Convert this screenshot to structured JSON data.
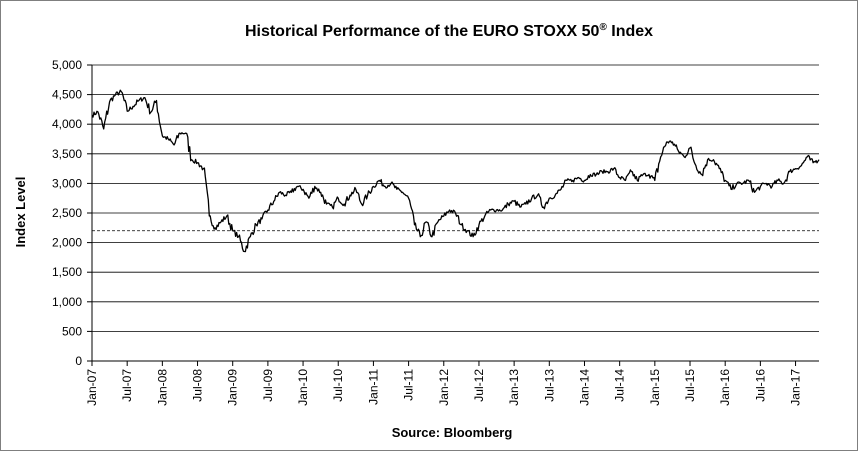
{
  "chart_data": {
    "type": "line",
    "title": "Historical Performance of the EURO STOXX 50",
    "title_superscript": "®",
    "title_suffix": " Index",
    "xlabel": "Source: Bloomberg",
    "ylabel": "Index Level",
    "ylim": [
      0,
      5000
    ],
    "yticks": [
      0,
      500,
      1000,
      1500,
      2000,
      2500,
      3000,
      3500,
      4000,
      4500,
      5000
    ],
    "ytick_labels": [
      "0",
      "500",
      "1,000",
      "1,500",
      "2,000",
      "2,500",
      "3,000",
      "3,500",
      "4,000",
      "4,500",
      "5,000"
    ],
    "xlim": [
      "2007-01",
      "2017-05"
    ],
    "xticks": [
      "2007-01",
      "2007-07",
      "2008-01",
      "2008-07",
      "2009-01",
      "2009-07",
      "2010-01",
      "2010-07",
      "2011-01",
      "2011-07",
      "2012-01",
      "2012-07",
      "2013-01",
      "2013-07",
      "2014-01",
      "2014-07",
      "2015-01",
      "2015-07",
      "2016-01",
      "2016-07",
      "2017-01"
    ],
    "xtick_labels": [
      "Jan-07",
      "Jul-07",
      "Jan-08",
      "Jul-08",
      "Jan-09",
      "Jul-09",
      "Jan-10",
      "Jul-10",
      "Jan-11",
      "Jul-11",
      "Jan-12",
      "Jul-12",
      "Jan-13",
      "Jul-13",
      "Jan-14",
      "Jul-14",
      "Jan-15",
      "Jul-15",
      "Jan-16",
      "Jul-16",
      "Jan-17"
    ],
    "grid": "horizontal",
    "reference_line": {
      "value": 2200,
      "style": "dashed"
    },
    "series": [
      {
        "x": [
          "2007-01",
          "2007-02",
          "2007-03",
          "2007-04",
          "2007-05",
          "2007-06",
          "2007-07",
          "2007-08",
          "2007-09",
          "2007-10",
          "2007-11",
          "2007-12",
          "2008-01",
          "2008-02",
          "2008-03",
          "2008-04",
          "2008-05",
          "2008-06",
          "2008-07",
          "2008-08",
          "2008-09",
          "2008-10",
          "2008-11",
          "2008-12",
          "2009-01",
          "2009-02",
          "2009-03",
          "2009-04",
          "2009-05",
          "2009-06",
          "2009-07",
          "2009-08",
          "2009-09",
          "2009-10",
          "2009-11",
          "2009-12",
          "2010-01",
          "2010-02",
          "2010-03",
          "2010-04",
          "2010-05",
          "2010-06",
          "2010-07",
          "2010-08",
          "2010-09",
          "2010-10",
          "2010-11",
          "2010-12",
          "2011-01",
          "2011-02",
          "2011-03",
          "2011-04",
          "2011-05",
          "2011-06",
          "2011-07",
          "2011-08",
          "2011-09",
          "2011-10",
          "2011-11",
          "2011-12",
          "2012-01",
          "2012-02",
          "2012-03",
          "2012-04",
          "2012-05",
          "2012-06",
          "2012-07",
          "2012-08",
          "2012-09",
          "2012-10",
          "2012-11",
          "2012-12",
          "2013-01",
          "2013-02",
          "2013-03",
          "2013-04",
          "2013-05",
          "2013-06",
          "2013-07",
          "2013-08",
          "2013-09",
          "2013-10",
          "2013-11",
          "2013-12",
          "2014-01",
          "2014-02",
          "2014-03",
          "2014-04",
          "2014-05",
          "2014-06",
          "2014-07",
          "2014-08",
          "2014-09",
          "2014-10",
          "2014-11",
          "2014-12",
          "2015-01",
          "2015-02",
          "2015-03",
          "2015-04",
          "2015-05",
          "2015-06",
          "2015-07",
          "2015-08",
          "2015-09",
          "2015-10",
          "2015-11",
          "2015-12",
          "2016-01",
          "2016-02",
          "2016-03",
          "2016-04",
          "2016-05",
          "2016-06",
          "2016-07",
          "2016-08",
          "2016-09",
          "2016-10",
          "2016-11",
          "2016-12",
          "2017-01",
          "2017-02",
          "2017-03",
          "2017-04",
          "2017-05"
        ],
        "values": [
          4150,
          4210,
          3920,
          4380,
          4500,
          4550,
          4220,
          4300,
          4400,
          4450,
          4200,
          4400,
          3800,
          3750,
          3650,
          3850,
          3850,
          3400,
          3350,
          3250,
          2450,
          2250,
          2350,
          2450,
          2200,
          2100,
          1850,
          2100,
          2300,
          2400,
          2550,
          2700,
          2850,
          2800,
          2850,
          2950,
          2900,
          2750,
          2950,
          2850,
          2650,
          2600,
          2750,
          2650,
          2800,
          2900,
          2650,
          2800,
          2950,
          3050,
          2950,
          3000,
          2900,
          2850,
          2750,
          2300,
          2100,
          2350,
          2100,
          2350,
          2450,
          2550,
          2500,
          2300,
          2200,
          2100,
          2300,
          2450,
          2550,
          2550,
          2550,
          2650,
          2700,
          2600,
          2650,
          2750,
          2800,
          2600,
          2750,
          2800,
          2900,
          3050,
          3050,
          3100,
          3050,
          3150,
          3150,
          3200,
          3200,
          3250,
          3100,
          3050,
          3200,
          3050,
          3150,
          3150,
          3050,
          3450,
          3700,
          3700,
          3550,
          3450,
          3600,
          3300,
          3150,
          3400,
          3400,
          3250,
          3050,
          2900,
          3000,
          3000,
          3050,
          2850,
          2950,
          3000,
          2950,
          3050,
          3000,
          3200,
          3250,
          3300,
          3450,
          3350,
          3400
        ]
      }
    ]
  }
}
